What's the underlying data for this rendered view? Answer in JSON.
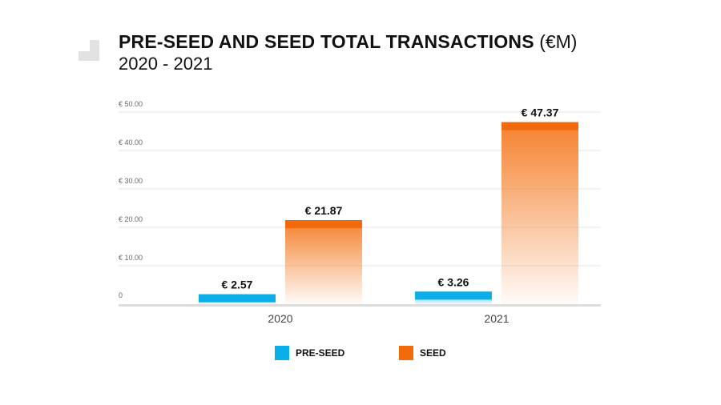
{
  "title": {
    "main": "PRE-SEED AND SEED TOTAL TRANSACTIONS",
    "unit": "(€M)",
    "sub": "2020 - 2021"
  },
  "colors": {
    "pre_seed": "#0aaee8",
    "seed": "#f06a0c",
    "grid": "#e6e6e6",
    "baseline": "#dddddd"
  },
  "chart_data": {
    "type": "bar",
    "categories": [
      "2020",
      "2021"
    ],
    "series": [
      {
        "name": "PRE-SEED",
        "values": [
          2.57,
          3.26
        ],
        "labels": [
          "€ 2.57",
          "€ 3.26"
        ]
      },
      {
        "name": "SEED",
        "values": [
          21.87,
          47.37
        ],
        "labels": [
          "€ 21.87",
          "€ 47.37"
        ]
      }
    ],
    "yticks": [
      0,
      10,
      20,
      30,
      40,
      50
    ],
    "ytick_labels": [
      "0",
      "€ 10.00",
      "€ 20.00",
      "€ 30.00",
      "€ 40.00",
      "€ 50.00"
    ],
    "ylim": [
      0,
      50
    ],
    "grid": true,
    "legend_position": "bottom"
  },
  "legend": [
    {
      "label": "PRE-SEED"
    },
    {
      "label": "SEED"
    }
  ]
}
